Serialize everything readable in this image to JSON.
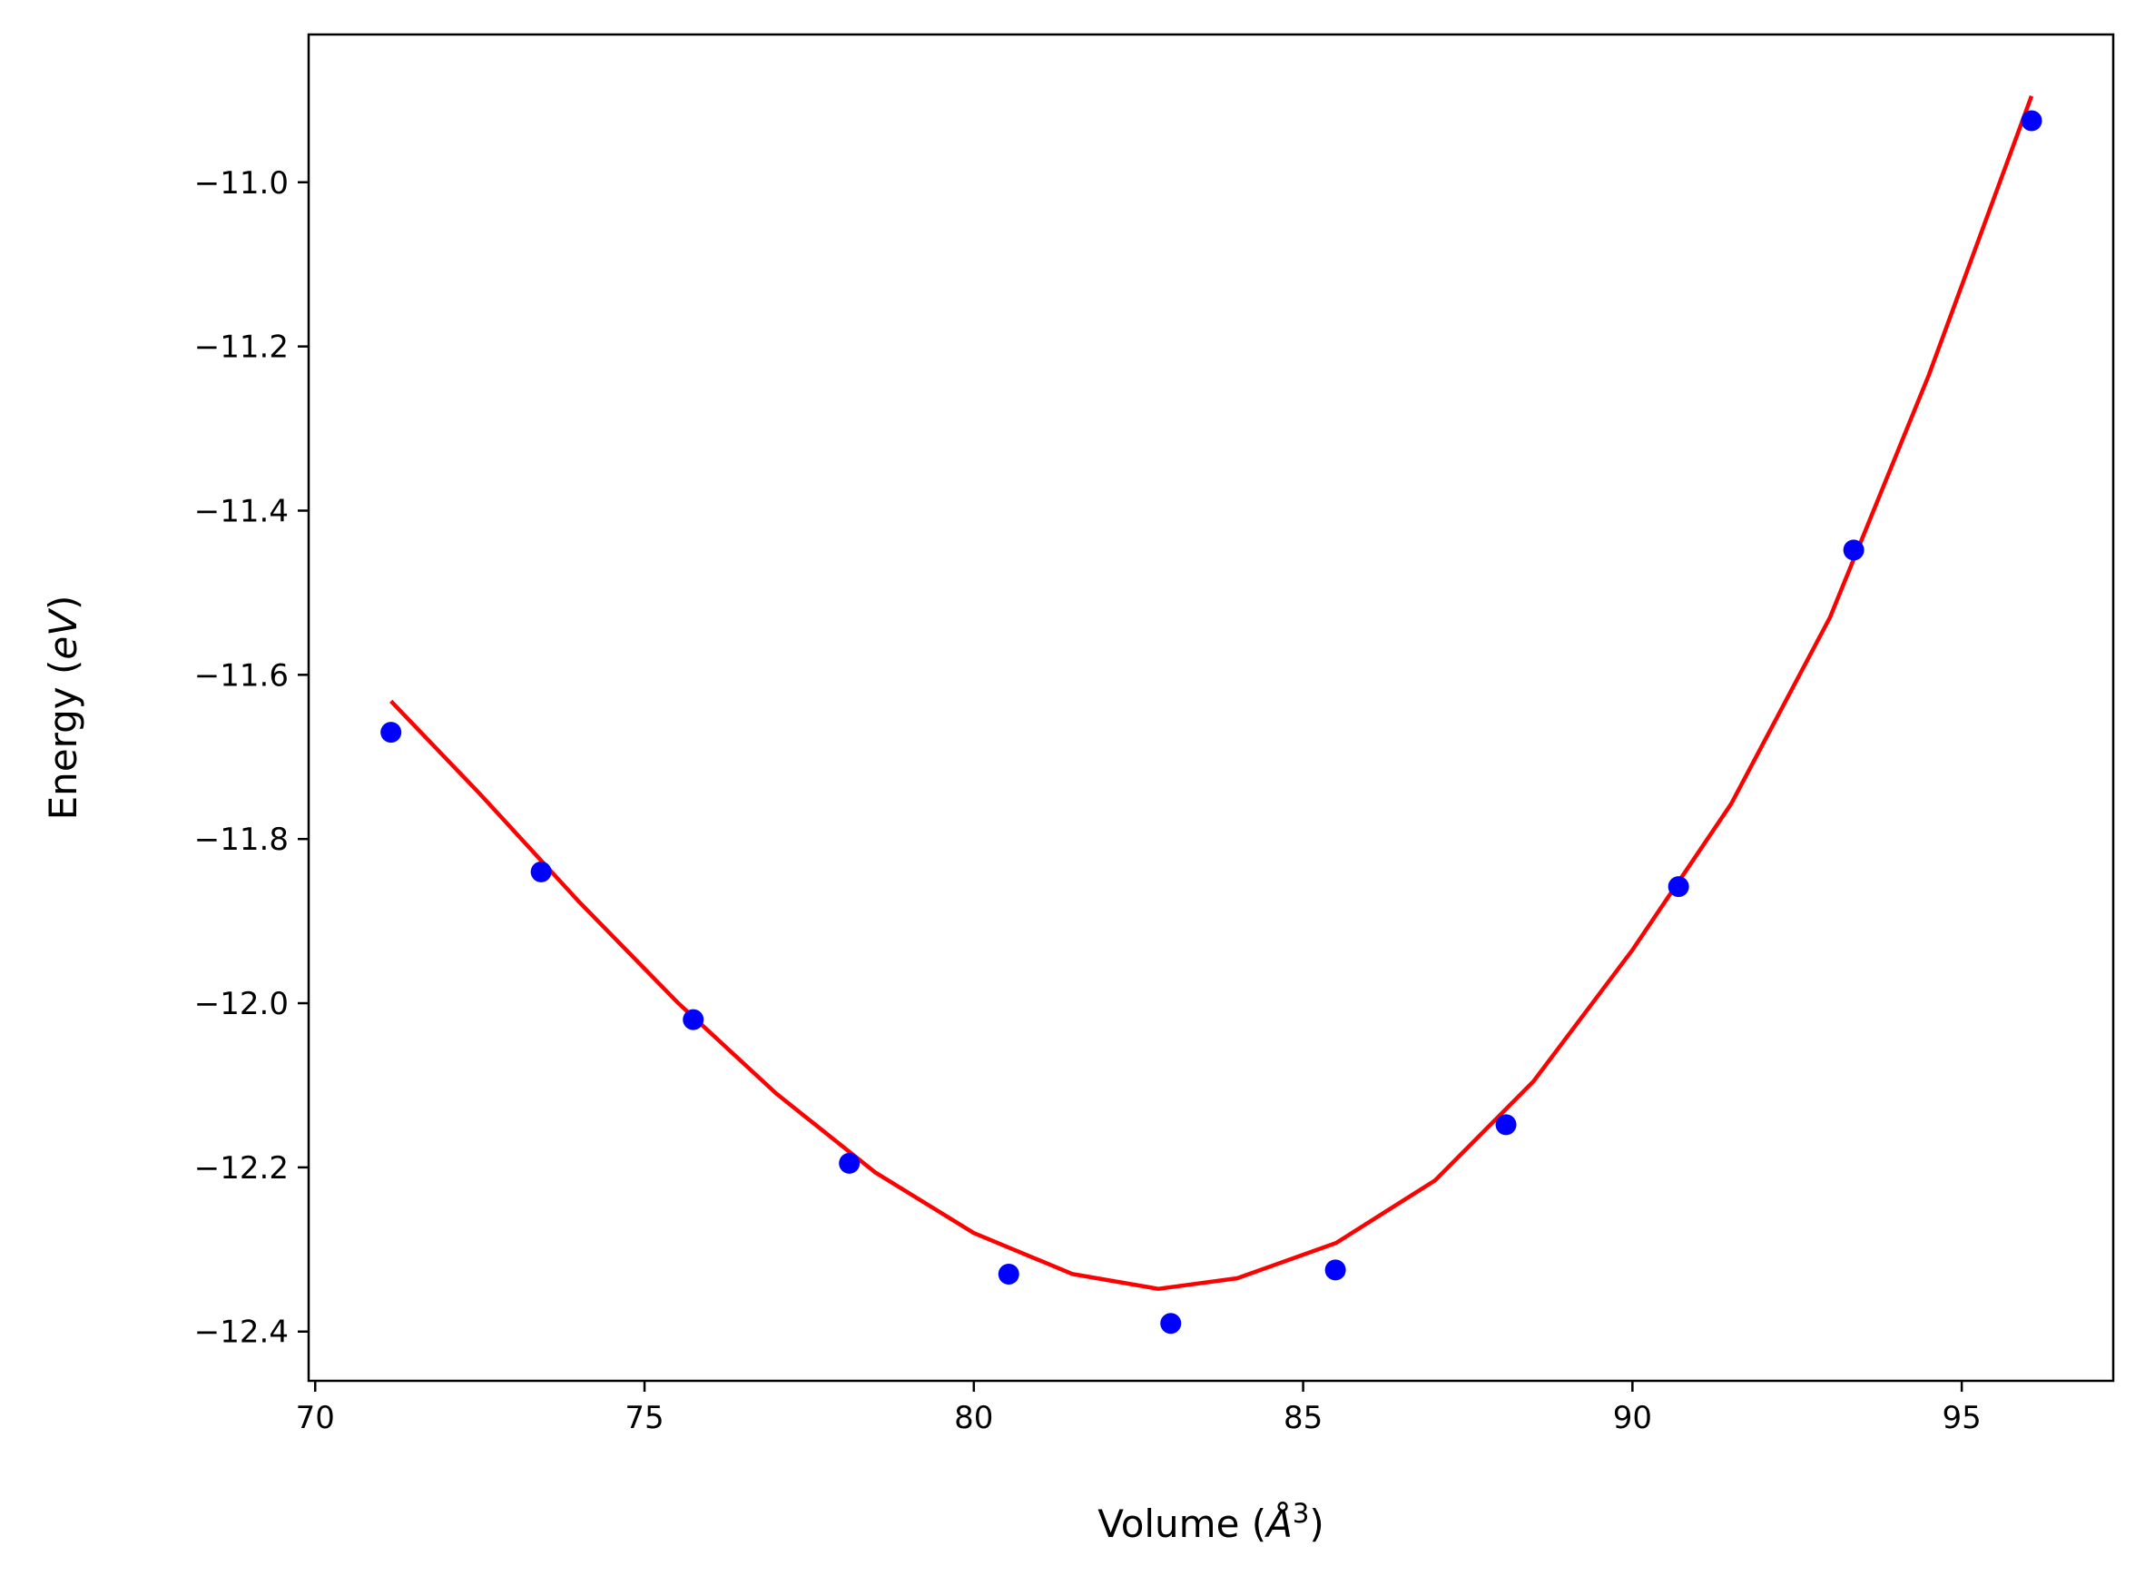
{
  "chart_data": {
    "type": "scatter",
    "title": "",
    "xlabel": "Volume",
    "xlabel_unit_base": "Å",
    "xlabel_unit_exp": "3",
    "ylabel": "Energy",
    "ylabel_unit": "eV",
    "xlim": [
      69.9,
      97.3
    ],
    "ylim": [
      -12.46,
      -10.82
    ],
    "xticks": [
      70,
      75,
      80,
      85,
      90,
      95
    ],
    "xtick_labels": [
      "70",
      "75",
      "80",
      "85",
      "90",
      "95"
    ],
    "yticks": [
      -11.0,
      -11.2,
      -11.4,
      -11.6,
      -11.8,
      -12.0,
      -12.2,
      -12.4
    ],
    "ytick_labels": [
      "−11.0",
      "−11.2",
      "−11.4",
      "−11.6",
      "−11.8",
      "−12.0",
      "−12.2",
      "−12.4"
    ],
    "grid": false,
    "series": [
      {
        "kind": "points",
        "color": "#0000ff",
        "x": [
          71.15,
          73.43,
          75.74,
          78.11,
          80.53,
          82.99,
          85.49,
          88.08,
          90.7,
          93.36,
          96.06
        ],
        "y": [
          -11.67,
          -11.84,
          -12.02,
          -12.195,
          -12.33,
          -12.39,
          -12.325,
          -12.148,
          -11.858,
          -11.448,
          -10.925
        ]
      },
      {
        "kind": "fit-curve",
        "color": "#ff0000",
        "x": [
          71.15,
          72.5,
          74.0,
          75.5,
          77.0,
          78.5,
          80.0,
          81.5,
          82.8,
          84.0,
          85.5,
          87.0,
          88.5,
          90.0,
          91.5,
          93.0,
          94.5,
          96.06
        ],
        "y": [
          -11.632,
          -11.745,
          -11.876,
          -11.999,
          -12.11,
          -12.206,
          -12.28,
          -12.33,
          -12.348,
          -12.335,
          -12.292,
          -12.216,
          -12.095,
          -11.935,
          -11.757,
          -11.53,
          -11.235,
          -10.895
        ]
      }
    ]
  }
}
